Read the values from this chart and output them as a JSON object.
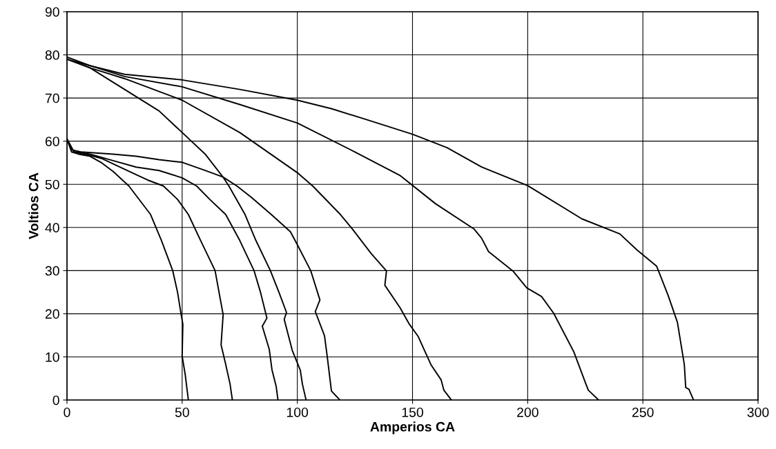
{
  "chart_data": {
    "type": "line",
    "xlabel": "Amperios CA",
    "ylabel": "Voltios CA",
    "xlim": [
      0,
      300
    ],
    "xticks": [
      0,
      50,
      100,
      150,
      200,
      250,
      300
    ],
    "ylim": [
      0,
      90
    ],
    "yticks": [
      0,
      10,
      20,
      30,
      40,
      50,
      60,
      70,
      80,
      90
    ],
    "grid": true,
    "legend": false,
    "marker": "none",
    "line_style": "solid",
    "series": [
      {
        "color": "#000000",
        "x": [
          0,
          10,
          25,
          50,
          75,
          100,
          115,
          130,
          150,
          165,
          180,
          200,
          223.5,
          240,
          247.4,
          256,
          261,
          265,
          268,
          268.6,
          270,
          272
        ],
        "values": [
          79.5,
          77.5,
          75.5,
          74.2,
          72,
          69.5,
          67.5,
          65,
          61.6,
          58.5,
          54,
          49.7,
          42,
          38.5,
          34.8,
          31,
          24.2,
          18,
          8.2,
          2.9,
          2.5,
          0
        ]
      },
      {
        "color": "#000000",
        "x": [
          0,
          10,
          25,
          50,
          75,
          100,
          125,
          144.7,
          160,
          176.8,
          180,
          183,
          193.6,
          199.6,
          206,
          211.3,
          220,
          225,
          226.3,
          230.8
        ],
        "values": [
          79,
          77.5,
          75,
          72.6,
          68.5,
          64.2,
          57.5,
          52,
          45.5,
          39.6,
          37.5,
          34.4,
          29.9,
          26,
          24,
          20.1,
          11.2,
          4.1,
          2.3,
          0
        ]
      },
      {
        "color": "#000000",
        "x": [
          0,
          10,
          25,
          50,
          75,
          100,
          106.7,
          118.7,
          123.8,
          132,
          138.7,
          138,
          144.7,
          148.6,
          152.5,
          158,
          162.4,
          163.6,
          166.9
        ],
        "values": [
          79,
          77,
          74.5,
          69.5,
          62,
          52.7,
          49.6,
          43,
          39.7,
          34,
          29.9,
          26.6,
          21.3,
          17.6,
          14.7,
          8.2,
          4.7,
          2.3,
          0
        ]
      },
      {
        "color": "#000000",
        "x": [
          0,
          10,
          25,
          40,
          50,
          60,
          67.7,
          70.3,
          77.3,
          82,
          88.3,
          92,
          95.3,
          94.3,
          97.8,
          101.3,
          102.2,
          103.8
        ],
        "values": [
          79,
          77,
          72,
          67,
          62,
          57,
          51.7,
          49.6,
          43,
          37,
          30,
          25,
          20.3,
          18.7,
          11.5,
          6.9,
          3.7,
          0
        ]
      },
      {
        "color": "#000000",
        "x": [
          0,
          2,
          6,
          20,
          30,
          40,
          50,
          60,
          67.7,
          73.8,
          80,
          88.7,
          97,
          100,
          105.8,
          109.8,
          107.8,
          111.8,
          113,
          114.8,
          118.5
        ],
        "values": [
          60.5,
          58,
          57.5,
          57,
          56.5,
          55.7,
          55.1,
          53.2,
          51.7,
          49.6,
          47,
          43,
          39,
          36,
          30,
          23.2,
          20.5,
          14.9,
          10,
          2.1,
          0
        ]
      },
      {
        "color": "#000000",
        "x": [
          0,
          3,
          10,
          20,
          30,
          40,
          50,
          56.3,
          62,
          68.9,
          75,
          81.2,
          84,
          86.8,
          84.8,
          87.8,
          89,
          90.8,
          91.6
        ],
        "values": [
          60.5,
          57.5,
          57,
          55.5,
          54,
          53.2,
          51.5,
          49.6,
          46.5,
          43,
          37,
          30,
          25,
          19,
          17.1,
          11.8,
          7,
          3.2,
          0
        ]
      },
      {
        "color": "#000000",
        "x": [
          0,
          3,
          8,
          15,
          25,
          35,
          41.9,
          48,
          52.7,
          58,
          64.3,
          66,
          67.8,
          66.9,
          68.8,
          70.8,
          71.8
        ],
        "values": [
          60.5,
          57.5,
          57,
          56,
          53.5,
          51,
          49.6,
          46.5,
          43,
          37,
          30,
          25,
          19.8,
          12.8,
          8.5,
          3.7,
          0
        ]
      },
      {
        "color": "#000000",
        "x": [
          0,
          2,
          5,
          10,
          15,
          20,
          26.9,
          36.3,
          41,
          45.9,
          48,
          49.5,
          50.3,
          50,
          51.3,
          52.7
        ],
        "values": [
          60.5,
          57.5,
          57,
          56.5,
          55,
          53,
          49.6,
          43,
          37,
          30,
          25,
          20,
          17.6,
          10.2,
          6,
          0
        ]
      }
    ]
  }
}
